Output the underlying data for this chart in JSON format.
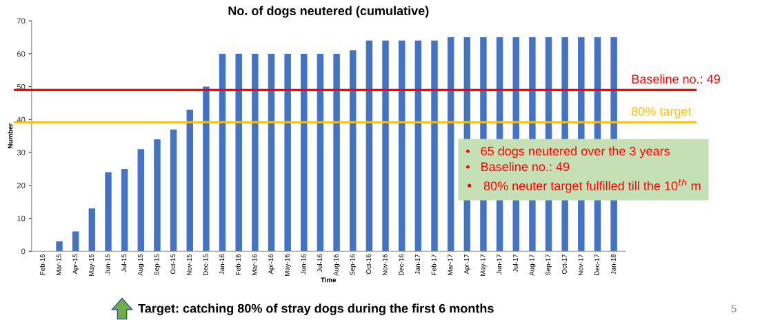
{
  "chart_data": {
    "type": "bar",
    "title": "No. of dogs neutered (cumulative)",
    "xlabel": "Time",
    "ylabel": "Number",
    "categories": [
      "Feb-15",
      "Mar-15",
      "Apr-15",
      "May-15",
      "Jun-15",
      "Jul-15",
      "Aug-15",
      "Sep-15",
      "Oct-15",
      "Nov-15",
      "Dec-15",
      "Jan-16",
      "Feb-16",
      "Mar-16",
      "Apr-16",
      "May-16",
      "Jun-16",
      "Jul-16",
      "Aug-16",
      "Sep-16",
      "Oct-16",
      "Nov-16",
      "Dec-16",
      "Jan-17",
      "Feb-17",
      "Mar-17",
      "Apr-17",
      "May-17",
      "Jun-17",
      "Jul-17",
      "Aug-17",
      "Sep-17",
      "Oct-17",
      "Nov-17",
      "Dec-17",
      "Jan-18"
    ],
    "values": [
      0,
      3,
      6,
      13,
      24,
      25,
      31,
      34,
      37,
      43,
      50,
      60,
      60,
      60,
      60,
      60,
      60,
      60,
      60,
      61,
      64,
      64,
      64,
      64,
      64,
      65,
      65,
      65,
      65,
      65,
      65,
      65,
      65,
      65,
      65,
      65
    ],
    "color": "#4472c4",
    "ylim": [
      0,
      70
    ],
    "yticks": [
      0,
      10,
      20,
      30,
      40,
      50,
      60,
      70
    ],
    "grid": false,
    "legend": false,
    "ref_lines": [
      {
        "axis": "y",
        "value": 49,
        "label": "Baseline no.: 49",
        "color": "#ff0000"
      },
      {
        "axis": "y",
        "value": 39.2,
        "label": "80% target",
        "color": "#ffc000"
      }
    ],
    "annotations": [
      "•   65 dogs neutered over the 3 years\n•   Baseline no.: 49\n•   80% neuter target fulfilled till the 10$^{th}$ m",
      "Target: catching 80% of stray dogs during the first 6 months",
      "5"
    ]
  }
}
